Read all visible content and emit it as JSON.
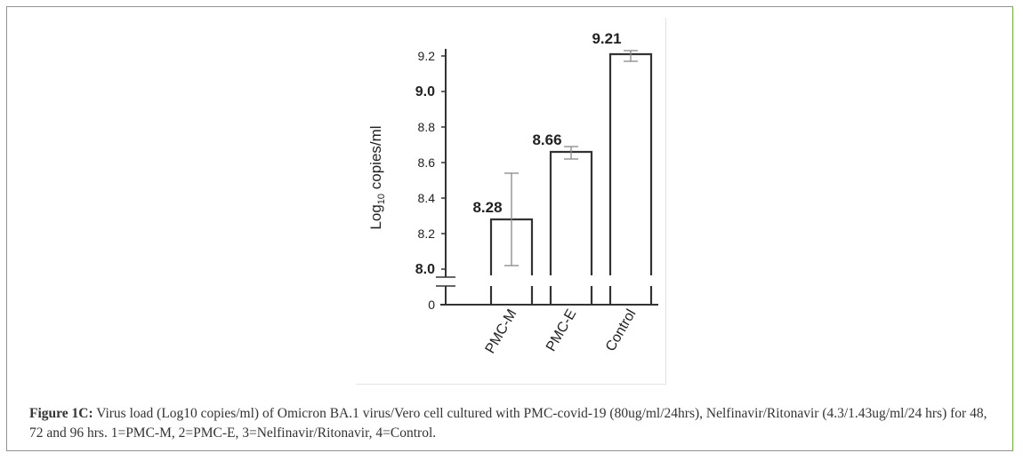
{
  "chart_data": {
    "type": "bar",
    "categories": [
      "PMC-M",
      "PMC-E",
      "Control"
    ],
    "values": [
      8.28,
      8.66,
      9.21
    ],
    "value_labels": [
      "8.28",
      "8.66",
      "9.21"
    ],
    "error_low": [
      8.02,
      8.62,
      9.17
    ],
    "error_high": [
      8.54,
      8.69,
      9.23
    ],
    "ylabel_main": "Log",
    "ylabel_sub": "10",
    "ylabel_rest": " copies/ml",
    "yticks": [
      "0",
      "8.0",
      "8.2",
      "8.4",
      "8.6",
      "8.8",
      "9.0",
      "9.2"
    ],
    "ylim": [
      8.0,
      9.2
    ],
    "axis_break": true,
    "grid": false
  },
  "caption": {
    "label": "Figure 1C:",
    "text": " Virus load (Log10 copies/ml) of Omicron BA.1 virus/Vero cell cultured with PMC-covid-19 (80ug/ml/24hrs), Nelfinavir/Ritonavir (4.3/1.43ug/ml/24 hrs) for 48, 72 and 96 hrs. 1=PMC-M, 2=PMC-E, 3=Nelfinavir/Ritonavir, 4=Control."
  }
}
